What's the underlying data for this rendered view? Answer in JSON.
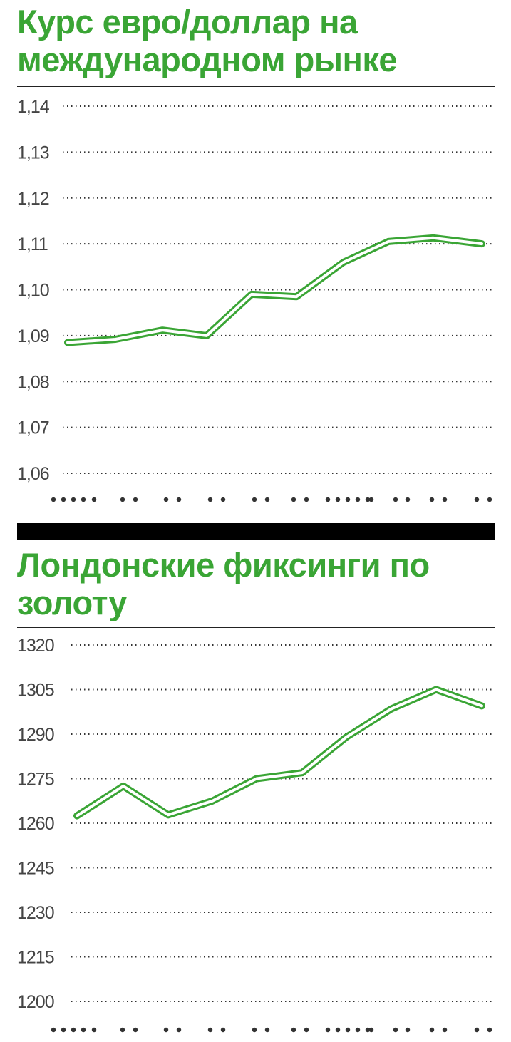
{
  "chart_data": [
    {
      "type": "line",
      "title": "Курс евро/доллар на международном рынке",
      "ylim": [
        1.06,
        1.14
      ],
      "yticks": [
        "1,14",
        "1,13",
        "1,12",
        "1,11",
        "1,10",
        "1,09",
        "1,08",
        "1,07",
        "1,06"
      ],
      "ytick_values": [
        1.14,
        1.13,
        1.12,
        1.11,
        1.1,
        1.09,
        1.08,
        1.07,
        1.06
      ],
      "grid": true,
      "line_color": "#3aa535",
      "series": [
        {
          "values": [
            1.0885,
            1.0892,
            1.0912,
            1.09,
            1.099,
            1.0985,
            1.106,
            1.1105,
            1.1113,
            1.11
          ]
        }
      ]
    },
    {
      "type": "line",
      "title": "Лондонские фиксинги по золоту",
      "ylim": [
        1200,
        1320
      ],
      "yticks": [
        "1320",
        "1305",
        "1290",
        "1275",
        "1260",
        "1245",
        "1230",
        "1215",
        "1200"
      ],
      "ytick_values": [
        1320,
        1305,
        1290,
        1275,
        1260,
        1245,
        1230,
        1215,
        1200
      ],
      "grid": true,
      "line_color": "#3aa535",
      "series": [
        {
          "values": [
            1262.5,
            1272.5,
            1262.8,
            1267.5,
            1275.0,
            1277.0,
            1289.0,
            1298.5,
            1305.0,
            1299.5
          ]
        }
      ]
    }
  ]
}
